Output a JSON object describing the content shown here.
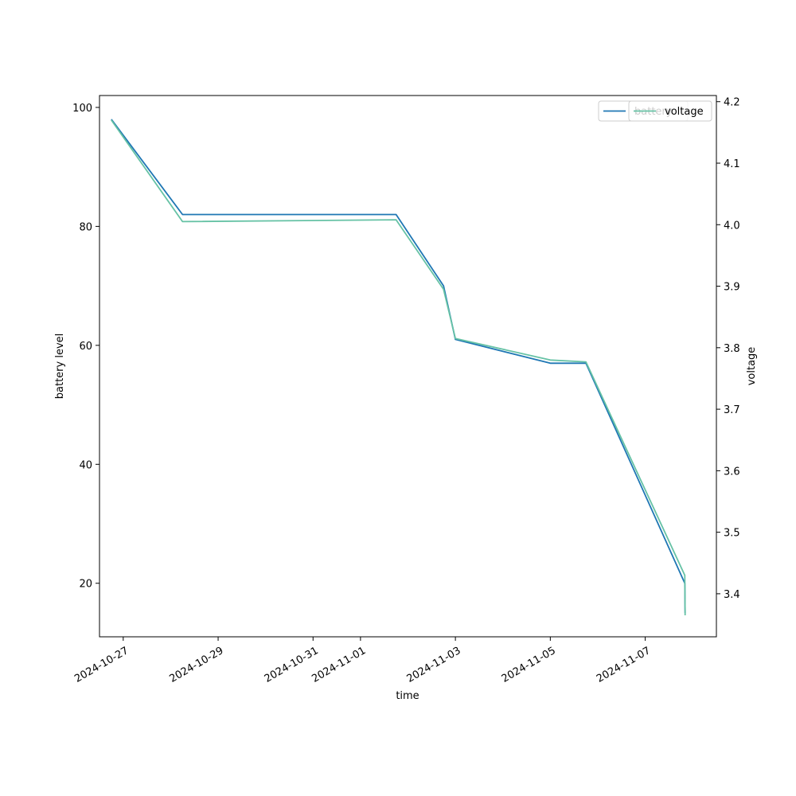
{
  "chart_data": {
    "type": "line",
    "xlabel": "time",
    "ylabel": "battery level",
    "y2label": "voltage",
    "grid": false,
    "legend_placement": "top-right",
    "xlim": [
      "2024-10-26T12:00",
      "2024-11-08T12:00"
    ],
    "ylim": [
      11.0,
      102.0
    ],
    "y2lim": [
      3.33,
      4.21
    ],
    "x_ticks": [
      "2024-10-27",
      "2024-10-29",
      "2024-10-31",
      "2024-11-01",
      "2024-11-03",
      "2024-11-05",
      "2024-11-07"
    ],
    "y_ticks": [
      "20",
      "40",
      "60",
      "80",
      "100"
    ],
    "y2_ticks": [
      "3.4",
      "3.5",
      "3.6",
      "3.7",
      "3.8",
      "3.9",
      "4.0",
      "4.1",
      "4.2"
    ],
    "series": [
      {
        "name": "battery",
        "axis": "left",
        "color": "#1f77b4",
        "x": [
          "2024-10-26T18:00",
          "2024-10-28T06:00",
          "2024-11-01T18:00",
          "2024-11-02T18:00",
          "2024-11-03T00:00",
          "2024-11-05T00:00",
          "2024-11-05T18:00",
          "2024-11-07T20:00",
          "2024-11-07T20:10"
        ],
        "y": [
          98,
          82,
          82,
          70,
          61,
          57,
          57,
          20,
          15
        ]
      },
      {
        "name": "voltage",
        "axis": "right",
        "color": "#66c2a5",
        "x": [
          "2024-10-26T18:00",
          "2024-10-28T06:00",
          "2024-11-01T18:00",
          "2024-11-02T18:00",
          "2024-11-03T00:00",
          "2024-11-05T00:00",
          "2024-11-05T18:00",
          "2024-11-07T20:00",
          "2024-11-07T20:10"
        ],
        "y": [
          4.17,
          4.005,
          4.008,
          3.895,
          3.815,
          3.78,
          3.777,
          3.43,
          3.365
        ]
      }
    ],
    "legends": [
      {
        "entries": [
          "battery"
        ]
      },
      {
        "entries": [
          "voltage"
        ]
      }
    ]
  }
}
